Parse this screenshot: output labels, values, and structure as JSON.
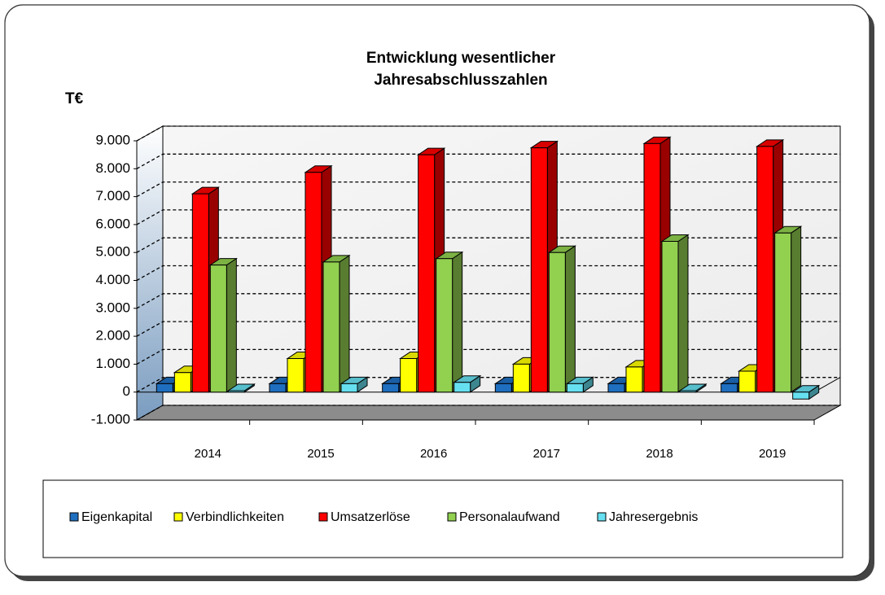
{
  "chart_data": {
    "type": "bar3d",
    "title": [
      "Entwicklung  wesentlicher",
      "Jahresabschlusszahlen"
    ],
    "y_label": "T€",
    "categories": [
      "2014",
      "2015",
      "2016",
      "2017",
      "2018",
      "2019"
    ],
    "series": [
      {
        "name": "Eigenkapital",
        "color": "#1f6fc0",
        "values": [
          300,
          300,
          300,
          300,
          300,
          300
        ]
      },
      {
        "name": "Verbindlichkeiten",
        "color": "#ffff00",
        "values": [
          700,
          1200,
          1200,
          1000,
          900,
          750
        ]
      },
      {
        "name": "Umsatzerlöse",
        "color": "#ff0000",
        "values": [
          7100,
          7870,
          8500,
          8750,
          8900,
          8800
        ]
      },
      {
        "name": "Personalaufwand",
        "color": "#92d050",
        "values": [
          4550,
          4660,
          4780,
          5000,
          5400,
          5700
        ]
      },
      {
        "name": "Jahresergebnis",
        "color": "#66e0f0",
        "values": [
          50,
          300,
          350,
          300,
          50,
          -250
        ]
      }
    ],
    "ylim": [
      -1000,
      9000
    ],
    "yticks": [
      {
        "value": -1000,
        "label": "-1.000"
      },
      0,
      {
        "value": 1000,
        "label": "1.000"
      },
      {
        "value": 2000,
        "label": "2.000"
      },
      {
        "value": 3000,
        "label": "3.000"
      },
      {
        "value": 4000,
        "label": "4.000"
      },
      {
        "value": 5000,
        "label": "5.000"
      },
      {
        "value": 6000,
        "label": "6.000"
      },
      {
        "value": 7000,
        "label": "7.000"
      },
      {
        "value": 8000,
        "label": "8.000"
      },
      {
        "value": 9000,
        "label": "9.000"
      }
    ],
    "grid": true
  }
}
